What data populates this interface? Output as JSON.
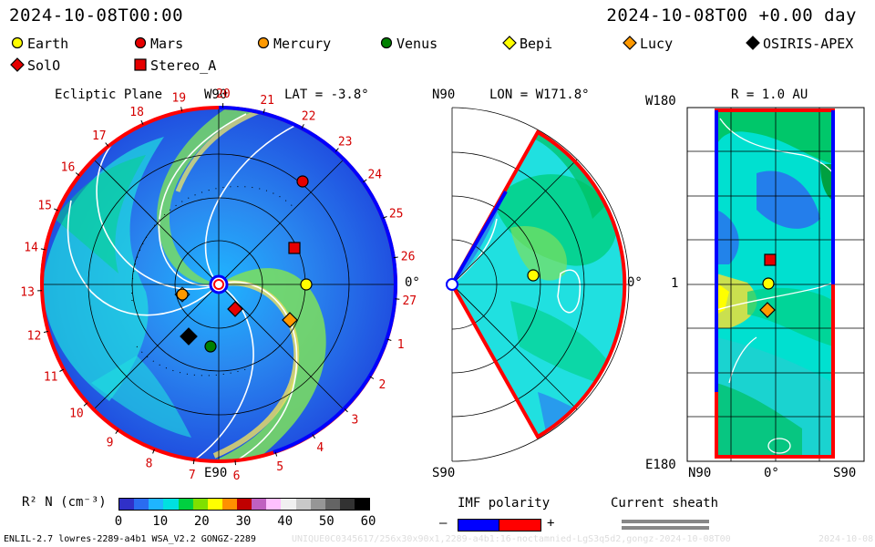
{
  "header": {
    "timestamp_left": "2024-10-08T00:00",
    "timestamp_right": "2024-10-08T00 +0.00 day"
  },
  "legend": {
    "bodies": [
      {
        "name": "Earth",
        "marker": "circle",
        "color": "#ffff00"
      },
      {
        "name": "Mars",
        "marker": "circle",
        "color": "#e60000"
      },
      {
        "name": "Mercury",
        "marker": "circle",
        "color": "#ff9900"
      },
      {
        "name": "Venus",
        "marker": "circle",
        "color": "#008000"
      },
      {
        "name": "Bepi",
        "marker": "diamond",
        "color": "#ffff00"
      },
      {
        "name": "Lucy",
        "marker": "diamond",
        "color": "#ff9900"
      },
      {
        "name": "OSIRIS-APEX",
        "marker": "diamond",
        "color": "#000000"
      },
      {
        "name": "SolO",
        "marker": "diamond",
        "color": "#e60000"
      },
      {
        "name": "Stereo_A",
        "marker": "square",
        "color": "#e60000"
      }
    ]
  },
  "ecliptic_panel": {
    "title": "Ecliptic Plane",
    "top_label": "W90",
    "bottom_label": "E90",
    "right_label": "0°",
    "lat_label": "LAT = -3.8°",
    "rotation_ticks": [
      "19",
      "20",
      "21",
      "22",
      "23",
      "24",
      "25",
      "26",
      "27",
      "1",
      "2",
      "3",
      "4",
      "5",
      "6",
      "7",
      "8",
      "9",
      "10",
      "11",
      "12",
      "13",
      "14",
      "15",
      "16",
      "17",
      "18"
    ]
  },
  "meridional_panel": {
    "top_label": "N90",
    "bottom_label": "S90",
    "right_label": "0°",
    "lon_label": "LON = W171.8°"
  },
  "radial_panel": {
    "title": "R = 1.0 AU",
    "top_left_label": "W180",
    "mid_left_label": "1",
    "bottom_left_label": "E180",
    "bottom_labels": [
      "N90",
      "0°",
      "S90"
    ]
  },
  "colorbar": {
    "label": "R² N (cm⁻³)",
    "ticks": [
      "0",
      "10",
      "20",
      "30",
      "40",
      "50",
      "60"
    ],
    "colors": [
      "#3030c8",
      "#2a6cf0",
      "#1fb5ff",
      "#00e0e0",
      "#00d040",
      "#7fe000",
      "#ffff00",
      "#ff9000",
      "#c00000",
      "#c060c0",
      "#ffc0ff",
      "#f0f0f0",
      "#c8c8c8",
      "#969696",
      "#646464",
      "#323232",
      "#000000"
    ]
  },
  "imf": {
    "title": "IMF polarity",
    "minus": "–",
    "plus": "+",
    "neg_color": "#0000ff",
    "pos_color": "#ff0000"
  },
  "sheath": {
    "title": "Current sheath"
  },
  "footer": {
    "model_info": "ENLIL-2.7 lowres-2289-a4b1 WSA_V2.2 GONGZ-2289",
    "run_info": "UNIQUE0C0345617/256x30x90x1,2289-a4b1:16-noctamnied-LgS3q5d2,gongz-2024-10-08T00",
    "run_date": "2024-10-08"
  }
}
